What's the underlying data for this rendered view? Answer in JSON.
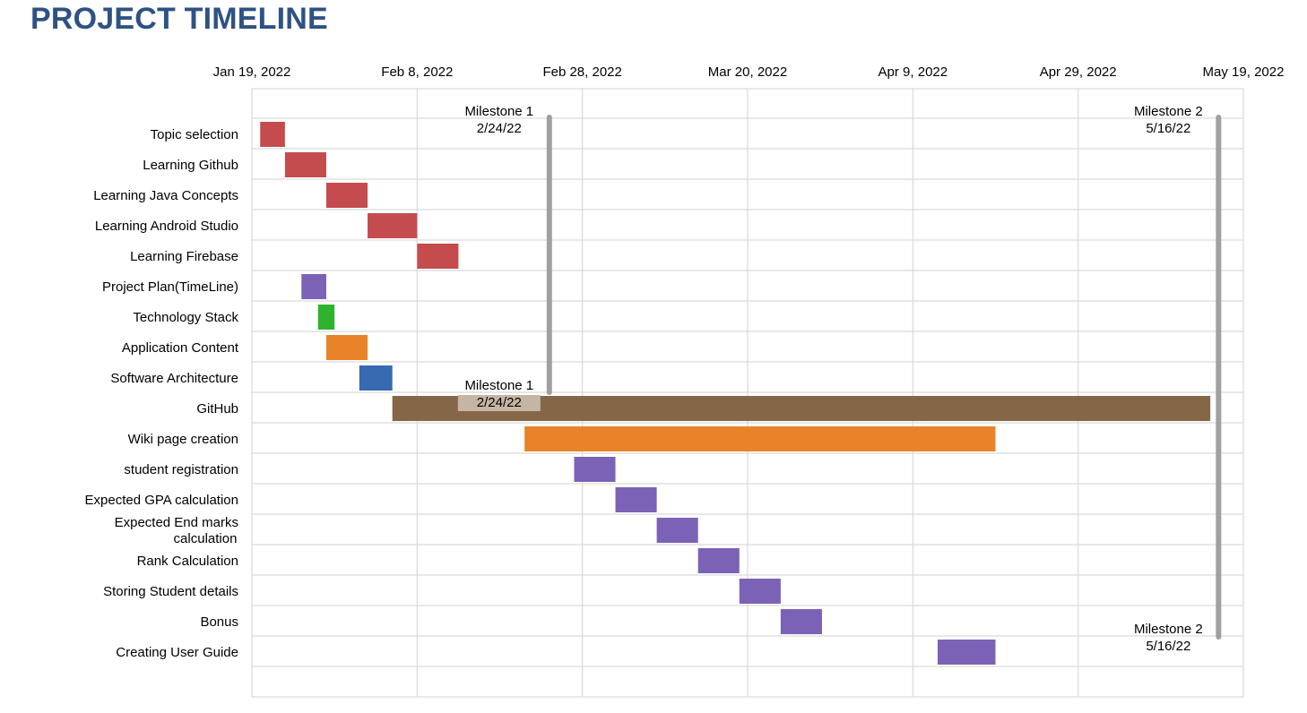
{
  "title": "PROJECT TIMELINE",
  "chart_data": {
    "type": "gantt",
    "x_axis": {
      "ticks": [
        "Jan 19, 2022",
        "Feb 8, 2022",
        "Feb 28, 2022",
        "Mar 20, 2022",
        "Apr 9, 2022",
        "Apr 29, 2022",
        "May 19, 2022"
      ],
      "range": [
        "2022-01-19",
        "2022-05-19"
      ],
      "position": "top"
    },
    "grid": true,
    "categories": [
      "Topic selection",
      "Learning Github",
      "Learning Java Concepts",
      "Learning Android Studio",
      "Learning Firebase",
      "Project Plan(TimeLine)",
      "Technology Stack",
      "Application Content",
      "Software Architecture",
      "GitHub",
      "Wiki page creation",
      "student registration",
      "Expected GPA calculation",
      "Expected End marks calculation",
      "Rank Calculation",
      "Storing Student details",
      "Bonus",
      "Creating User Guide"
    ],
    "tasks": [
      {
        "start": "2022-01-20",
        "end": "2022-01-23",
        "color": "#c44c4e"
      },
      {
        "start": "2022-01-23",
        "end": "2022-01-28",
        "color": "#c44c4e"
      },
      {
        "start": "2022-01-28",
        "end": "2022-02-02",
        "color": "#c44c4e"
      },
      {
        "start": "2022-02-02",
        "end": "2022-02-08",
        "color": "#c44c4e"
      },
      {
        "start": "2022-02-08",
        "end": "2022-02-13",
        "color": "#c44c4e"
      },
      {
        "start": "2022-01-25",
        "end": "2022-01-28",
        "color": "#7b62b6"
      },
      {
        "start": "2022-01-27",
        "end": "2022-01-29",
        "color": "#2fb22f"
      },
      {
        "start": "2022-01-28",
        "end": "2022-02-02",
        "color": "#e8832a"
      },
      {
        "start": "2022-02-01",
        "end": "2022-02-05",
        "color": "#366ab1"
      },
      {
        "start": "2022-02-05",
        "end": "2022-05-15",
        "color": "#856748"
      },
      {
        "start": "2022-02-21",
        "end": "2022-04-19",
        "color": "#e8832a"
      },
      {
        "start": "2022-02-27",
        "end": "2022-03-04",
        "color": "#7b62b6"
      },
      {
        "start": "2022-03-04",
        "end": "2022-03-09",
        "color": "#7b62b6"
      },
      {
        "start": "2022-03-09",
        "end": "2022-03-14",
        "color": "#7b62b6"
      },
      {
        "start": "2022-03-14",
        "end": "2022-03-19",
        "color": "#7b62b6"
      },
      {
        "start": "2022-03-19",
        "end": "2022-03-24",
        "color": "#7b62b6"
      },
      {
        "start": "2022-03-24",
        "end": "2022-03-29",
        "color": "#7b62b6"
      },
      {
        "start": "2022-04-12",
        "end": "2022-04-19",
        "color": "#7b62b6"
      }
    ],
    "milestones": [
      {
        "name": "Milestone 1",
        "date": "2022-02-24",
        "label": "2/24/22",
        "color": "#a0a0a0"
      },
      {
        "name": "Milestone 2",
        "date": "2022-05-16",
        "label": "5/16/22",
        "color": "#a0a0a0"
      }
    ]
  }
}
